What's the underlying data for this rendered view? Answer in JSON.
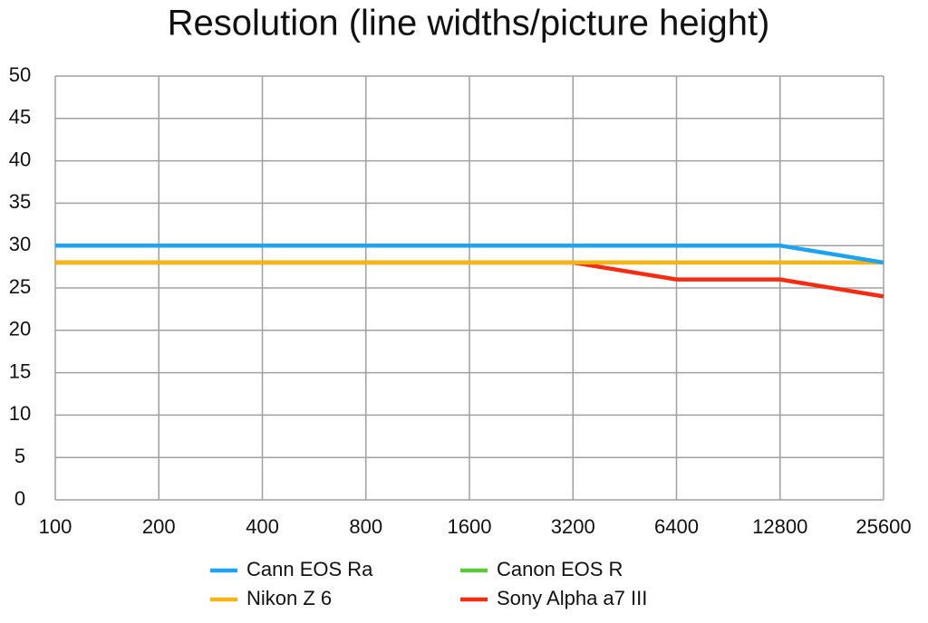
{
  "chart_data": {
    "type": "line",
    "title": "Resolution (line widths/picture height)",
    "x": [
      100,
      200,
      400,
      800,
      1600,
      3200,
      6400,
      12800,
      25600
    ],
    "xscale": "log",
    "xlim": [
      100,
      25600
    ],
    "xticks": [
      100,
      200,
      400,
      800,
      1600,
      3200,
      6400,
      12800,
      25600
    ],
    "ylim": [
      0,
      50
    ],
    "yticks": [
      0,
      5,
      10,
      15,
      20,
      25,
      30,
      35,
      40,
      45,
      50
    ],
    "grid": true,
    "series": [
      {
        "name": "Cann EOS Ra",
        "color": "#1fa3f0",
        "values": [
          30,
          30,
          30,
          30,
          30,
          30,
          30,
          30,
          28
        ]
      },
      {
        "name": "Canon EOS R",
        "color": "#5ec83c",
        "values": [
          28,
          28,
          28,
          28,
          28,
          28,
          28,
          28,
          28
        ]
      },
      {
        "name": "Nikon Z 6",
        "color": "#f5b417",
        "values": [
          28,
          28,
          28,
          28,
          28,
          28,
          28,
          28,
          28
        ]
      },
      {
        "name": "Sony Alpha a7 III",
        "color": "#f52c13",
        "values": [
          28,
          28,
          28,
          28,
          28,
          28,
          26,
          26,
          24
        ]
      }
    ]
  }
}
